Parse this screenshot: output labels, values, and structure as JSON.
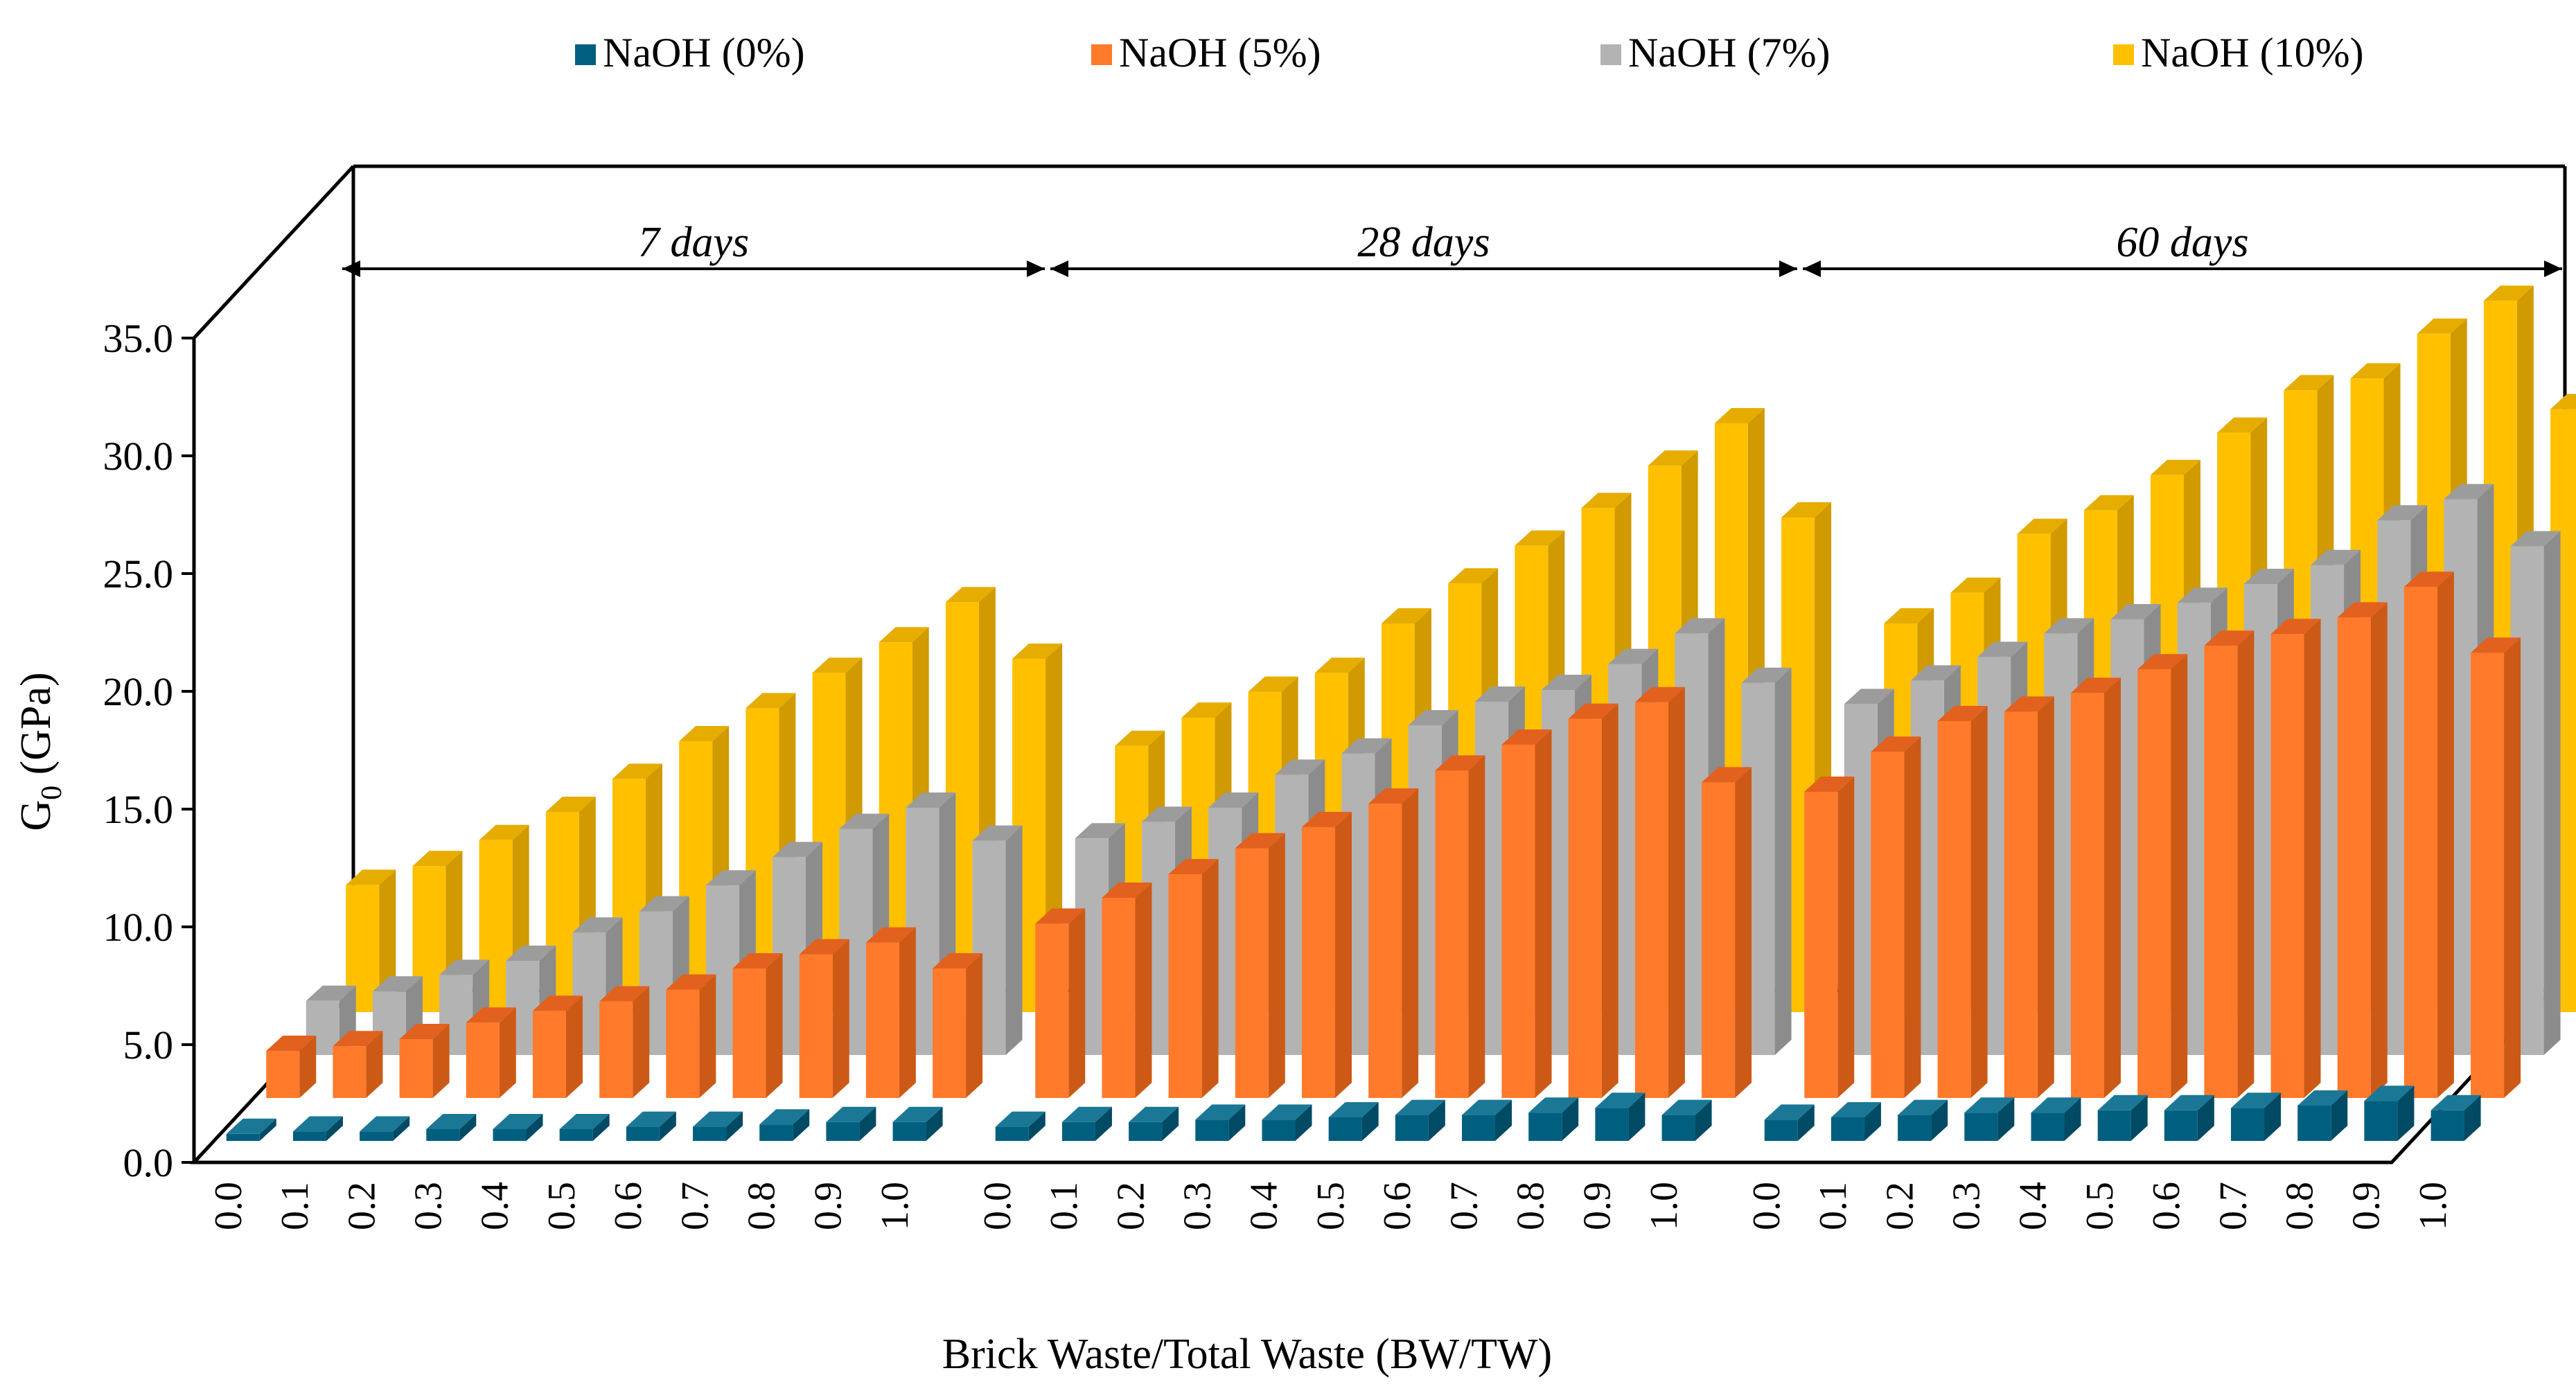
{
  "chart_data": {
    "type": "bar",
    "title": "",
    "xlabel": "Brick Waste/Total Waste (BW/TW)",
    "ylabel": "G",
    "ylabel_sub": "0",
    "ylabel_unit": " (GPa)",
    "ylim": [
      0,
      35
    ],
    "yticks": [
      "0.0",
      "5.0",
      "10.0",
      "15.0",
      "20.0",
      "25.0",
      "30.0",
      "35.0"
    ],
    "categories": [
      "0.0",
      "0.1",
      "0.2",
      "0.3",
      "0.4",
      "0.5",
      "0.6",
      "0.7",
      "0.8",
      "0.9",
      "1.0"
    ],
    "legend_position": "top",
    "groups": [
      {
        "name": "7 days",
        "series": [
          {
            "name": "NaOH (0%)",
            "values": [
              0.3,
              0.4,
              0.4,
              0.5,
              0.5,
              0.5,
              0.6,
              0.6,
              0.7,
              0.8,
              0.8
            ]
          },
          {
            "name": "NaOH (5%)",
            "values": [
              2.0,
              2.2,
              2.5,
              3.2,
              3.7,
              4.1,
              4.6,
              5.5,
              6.1,
              6.6,
              5.5
            ]
          },
          {
            "name": "NaOH (7%)",
            "values": [
              2.3,
              2.7,
              3.4,
              4.0,
              5.2,
              6.1,
              7.2,
              8.4,
              9.6,
              10.5,
              9.1
            ]
          },
          {
            "name": "NaOH (10%)",
            "values": [
              5.4,
              6.2,
              7.3,
              8.5,
              9.9,
              11.5,
              12.9,
              14.4,
              15.7,
              17.4,
              15.0
            ]
          }
        ]
      },
      {
        "name": "28 days",
        "series": [
          {
            "name": "NaOH (0%)",
            "values": [
              0.6,
              0.8,
              0.8,
              0.9,
              0.9,
              1.0,
              1.1,
              1.1,
              1.2,
              1.4,
              1.1
            ]
          },
          {
            "name": "NaOH (5%)",
            "values": [
              7.4,
              8.5,
              9.5,
              10.6,
              11.5,
              12.5,
              13.9,
              15.0,
              16.1,
              16.8,
              13.4
            ]
          },
          {
            "name": "NaOH (7%)",
            "values": [
              9.2,
              9.9,
              10.5,
              11.9,
              12.8,
              14.0,
              15.0,
              15.5,
              16.6,
              17.9,
              15.8
            ]
          },
          {
            "name": "NaOH (10%)",
            "values": [
              11.3,
              12.5,
              13.6,
              14.4,
              16.5,
              18.2,
              19.8,
              21.4,
              23.2,
              25.0,
              21.0
            ]
          }
        ]
      },
      {
        "name": "60 days",
        "series": [
          {
            "name": "NaOH (0%)",
            "values": [
              0.9,
              1.0,
              1.1,
              1.2,
              1.2,
              1.3,
              1.3,
              1.4,
              1.5,
              1.7,
              1.3
            ]
          },
          {
            "name": "NaOH (5%)",
            "values": [
              13.0,
              14.7,
              16.0,
              16.4,
              17.2,
              18.2,
              19.2,
              19.7,
              20.4,
              21.7,
              18.9
            ]
          },
          {
            "name": "NaOH (7%)",
            "values": [
              14.9,
              15.9,
              16.9,
              17.9,
              18.5,
              19.2,
              20.0,
              20.8,
              22.7,
              23.6,
              21.6
            ]
          },
          {
            "name": "NaOH (10%)",
            "values": [
              16.5,
              17.8,
              20.3,
              21.3,
              22.8,
              24.6,
              26.4,
              26.9,
              28.8,
              30.2,
              25.6
            ]
          }
        ]
      }
    ],
    "legend": [
      {
        "name": "NaOH (0%)",
        "color": "#005f7f",
        "side": "#004a63",
        "top": "#1a7896"
      },
      {
        "name": "NaOH (5%)",
        "color": "#ff7a2b",
        "side": "#cc5a16",
        "top": "#e2611e"
      },
      {
        "name": "NaOH (7%)",
        "color": "#b3b3b3",
        "side": "#8c8c8c",
        "top": "#9c9c9c"
      },
      {
        "name": "NaOH (10%)",
        "color": "#ffc000",
        "side": "#d09a00",
        "top": "#e6ad00"
      }
    ]
  }
}
